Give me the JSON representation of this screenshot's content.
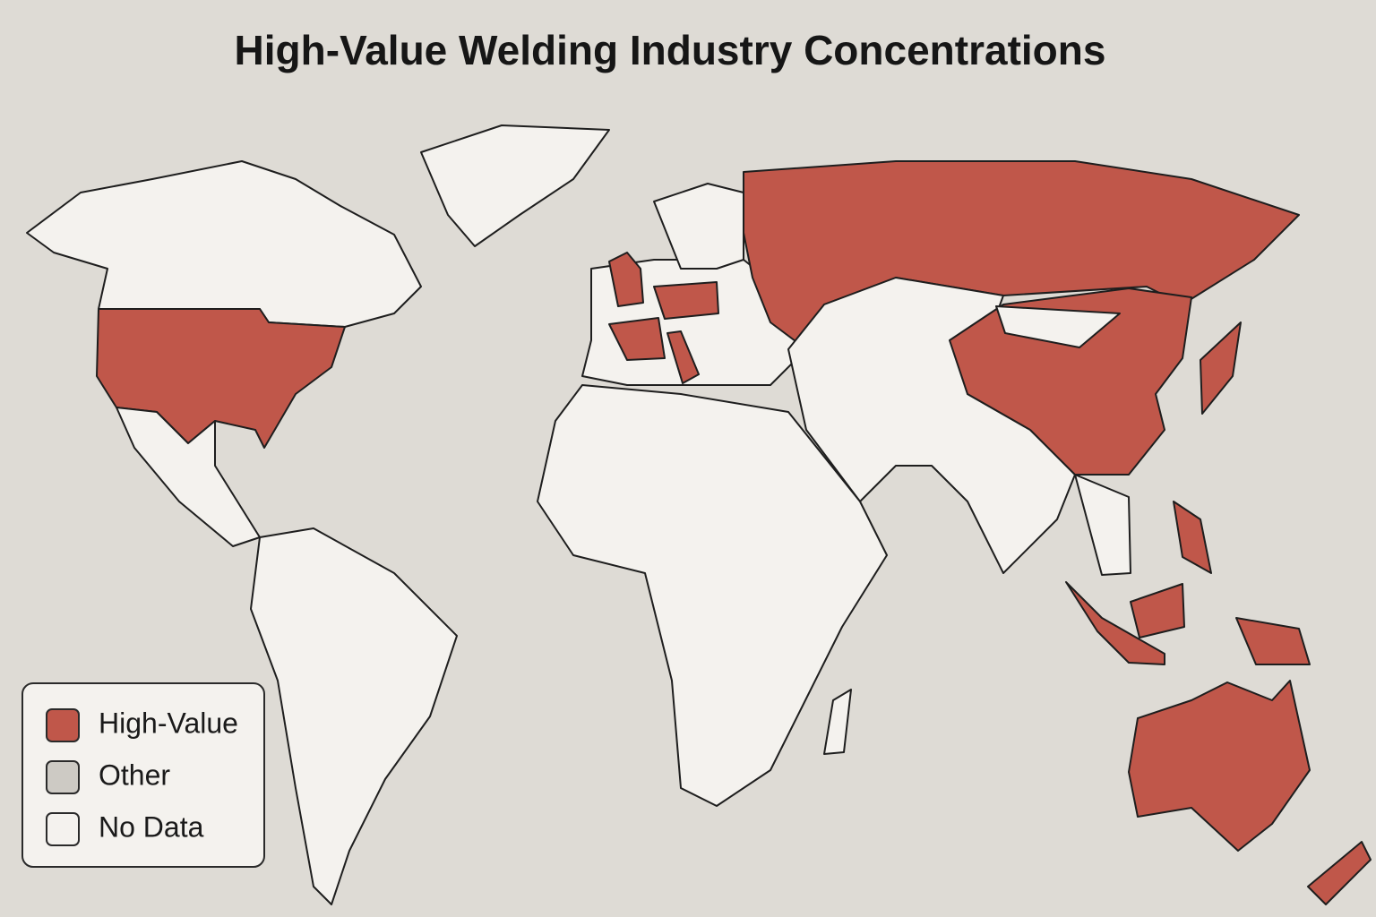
{
  "title": "High-Value Welding Industry Concentrations",
  "legend": [
    {
      "label": "High-Value",
      "color": "#c0574a"
    },
    {
      "label": "Other",
      "color": "#cdcac4"
    },
    {
      "label": "No Data",
      "color": "#f4f2ee"
    }
  ]
}
